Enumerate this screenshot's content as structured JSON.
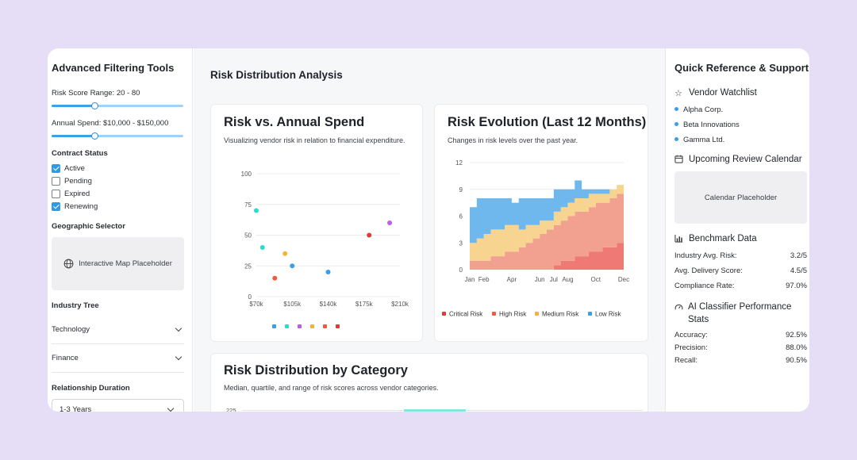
{
  "left": {
    "title": "Advanced Filtering Tools",
    "risk_score_label": "Risk Score Range: 20 - 80",
    "risk_score_value": 0.33,
    "annual_spend_label": "Annual Spend: $10,000 - $150,000",
    "annual_spend_value": 0.33,
    "contract_status_label": "Contract Status",
    "statuses": [
      {
        "label": "Active",
        "checked": true
      },
      {
        "label": "Pending",
        "checked": false
      },
      {
        "label": "Expired",
        "checked": false
      },
      {
        "label": "Renewing",
        "checked": true
      }
    ],
    "geo_label": "Geographic Selector",
    "map_placeholder": "Interactive Map Placeholder",
    "industry_tree_label": "Industry Tree",
    "industries": [
      "Technology",
      "Finance"
    ],
    "relationship_label": "Relationship Duration",
    "relationship_value": "1-3 Years"
  },
  "main": {
    "title": "Risk Distribution Analysis",
    "scatter_title": "Risk vs. Annual Spend",
    "scatter_sub": "Visualizing vendor risk in relation to financial expenditure.",
    "evolution_title": "Risk Evolution (Last 12 Months)",
    "evolution_sub": "Changes in risk levels over the past year.",
    "category_title": "Risk Distribution by Category",
    "category_sub": "Median, quartile, and range of risk scores across vendor categories.",
    "category_first_tick": "225"
  },
  "chart_data": [
    {
      "type": "scatter",
      "title": "Risk vs. Annual Spend",
      "xlabel": "",
      "ylabel": "",
      "xlim": [
        70,
        210
      ],
      "ylim": [
        0,
        100
      ],
      "x_ticks": [
        "$70k",
        "$105k",
        "$140k",
        "$175k",
        "$210k"
      ],
      "y_ticks": [
        "0",
        "25",
        "50",
        "75",
        "100"
      ],
      "points": [
        {
          "x": 70,
          "y": 70,
          "color": "#2ddcc6"
        },
        {
          "x": 76,
          "y": 40,
          "color": "#2ddcc6"
        },
        {
          "x": 88,
          "y": 15,
          "color": "#ef5a40"
        },
        {
          "x": 98,
          "y": 35,
          "color": "#f6b13a"
        },
        {
          "x": 105,
          "y": 25,
          "color": "#3b9ee6"
        },
        {
          "x": 140,
          "y": 20,
          "color": "#3b9ee6"
        },
        {
          "x": 180,
          "y": 50,
          "color": "#e03b35"
        },
        {
          "x": 200,
          "y": 60,
          "color": "#c05de8"
        }
      ],
      "legend_colors": [
        "#3b9ee6",
        "#2ddcc6",
        "#c05de8",
        "#f6b13a",
        "#ef5a40",
        "#e03b35"
      ]
    },
    {
      "type": "area",
      "title": "Risk Evolution (Last 12 Months)",
      "ylim": [
        0,
        12
      ],
      "y_ticks": [
        "0",
        "3",
        "6",
        "9",
        "12"
      ],
      "x_ticks": [
        "Jan",
        "Feb",
        "Apr",
        "Jun",
        "Jul",
        "Aug",
        "Oct",
        "Dec"
      ],
      "x_tick_months": [
        1,
        2,
        4,
        6,
        7,
        8,
        10,
        12
      ],
      "stacked": true,
      "months": [
        1,
        1.5,
        2,
        2.5,
        3,
        3.5,
        4,
        4.5,
        5,
        5.5,
        6,
        6.5,
        7,
        7.5,
        8,
        8.5,
        9,
        9.5,
        10,
        10.5,
        11,
        11.5,
        12
      ],
      "series": [
        {
          "name": "Critical Risk",
          "color": "#e03b35",
          "fill": "#ee7975",
          "values": [
            0,
            0,
            0,
            0,
            0,
            0,
            0,
            0,
            0,
            0,
            0,
            0,
            0.5,
            1,
            1,
            1.5,
            1.5,
            2,
            2,
            2.5,
            2.5,
            3,
            3.5
          ]
        },
        {
          "name": "High Risk",
          "color": "#ef5a40",
          "fill": "#f2a08f",
          "values": [
            1,
            1,
            1,
            1.5,
            1.5,
            2,
            2,
            2.5,
            3,
            3.5,
            4,
            4.5,
            4.5,
            4.5,
            5,
            5,
            5,
            5,
            5.5,
            5,
            5.5,
            5.5,
            5.5
          ]
        },
        {
          "name": "Medium Risk",
          "color": "#f6b13a",
          "fill": "#f7d48f",
          "values": [
            2,
            2.5,
            3,
            3,
            3,
            3,
            3,
            2,
            2,
            1.5,
            1.5,
            1,
            1.5,
            1.5,
            1.5,
            1.5,
            1.5,
            1.5,
            1,
            1,
            1,
            1,
            0
          ]
        },
        {
          "name": "Low Risk",
          "color": "#3b9ee6",
          "fill": "#6fb8ee",
          "values": [
            4,
            4.5,
            4,
            3.5,
            3.5,
            3,
            2.5,
            3.5,
            3,
            3,
            2.5,
            2.5,
            2.5,
            2,
            1.5,
            2,
            1,
            0.5,
            0.5,
            0.5,
            0,
            0,
            0
          ]
        }
      ]
    }
  ],
  "right": {
    "title": "Quick Reference & Support",
    "watchlist_title": "Vendor Watchlist",
    "watchlist": [
      "Alpha Corp.",
      "Beta Innovations",
      "Gamma Ltd."
    ],
    "calendar_title": "Upcoming Review Calendar",
    "calendar_placeholder": "Calendar Placeholder",
    "benchmark_title": "Benchmark Data",
    "benchmarks": [
      {
        "label": "Industry Avg. Risk:",
        "value": "3.2/5"
      },
      {
        "label": "Avg. Delivery Score:",
        "value": "4.5/5"
      },
      {
        "label": "Compliance Rate:",
        "value": "97.0%"
      }
    ],
    "ai_title": "AI Classifier Performance Stats",
    "ai_stats": [
      {
        "label": "Accuracy:",
        "value": "92.5%"
      },
      {
        "label": "Precision:",
        "value": "88.0%"
      },
      {
        "label": "Recall:",
        "value": "90.5%"
      }
    ]
  }
}
